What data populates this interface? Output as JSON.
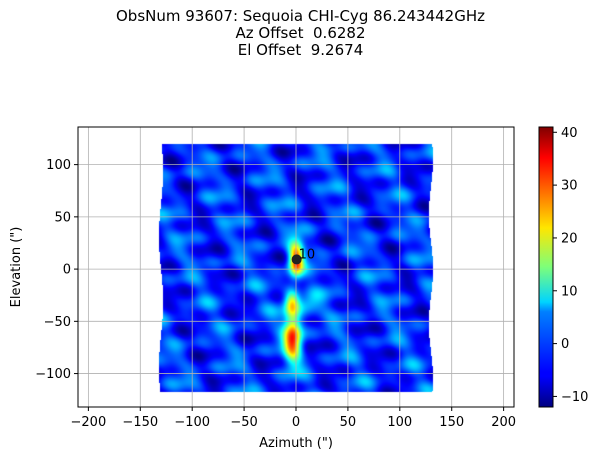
{
  "chart_data": {
    "type": "heatmap",
    "title_lines": [
      "ObsNum 93607: Sequoia CHI-Cyg 86.243442GHz",
      "Az Offset  0.6282",
      "El Offset  9.2674"
    ],
    "xlabel": "Azimuth (\")",
    "ylabel": "Elevation (\")",
    "xlim": [
      -210,
      210
    ],
    "ylim": [
      -132,
      136
    ],
    "xticks": [
      -200,
      -150,
      -100,
      -50,
      0,
      50,
      100,
      150,
      200
    ],
    "xtick_labels": [
      "−200",
      "−150",
      "−100",
      "−50",
      "0",
      "50",
      "100",
      "150",
      "200"
    ],
    "yticks": [
      -100,
      -50,
      0,
      50,
      100
    ],
    "ytick_labels": [
      "−100",
      "−50",
      "0",
      "50",
      "100"
    ],
    "grid": true,
    "colormap": "jet",
    "colorbar": {
      "vmin": -12,
      "vmax": 41,
      "ticks": [
        -10,
        0,
        10,
        20,
        30,
        40
      ],
      "tick_labels": [
        "−10",
        "0",
        "10",
        "20",
        "30",
        "40"
      ]
    },
    "map_extent": {
      "x": [
        -130,
        130
      ],
      "y": [
        -118,
        120
      ]
    },
    "sources": [
      {
        "x": 0,
        "y": 9,
        "amp": 34,
        "sx": 5,
        "sy": 12
      },
      {
        "x": -4,
        "y": -32,
        "amp": 22,
        "sx": 5,
        "sy": 9
      },
      {
        "x": -3,
        "y": -70,
        "amp": 30,
        "sx": 6,
        "sy": 14
      },
      {
        "x": -3,
        "y": -52,
        "amp": 12,
        "sx": 6,
        "sy": 10
      },
      {
        "x": 12,
        "y": -35,
        "amp": 10,
        "sx": 8,
        "sy": 7
      }
    ],
    "marker": {
      "x": 0.63,
      "y": 9.27,
      "label": "10"
    }
  }
}
